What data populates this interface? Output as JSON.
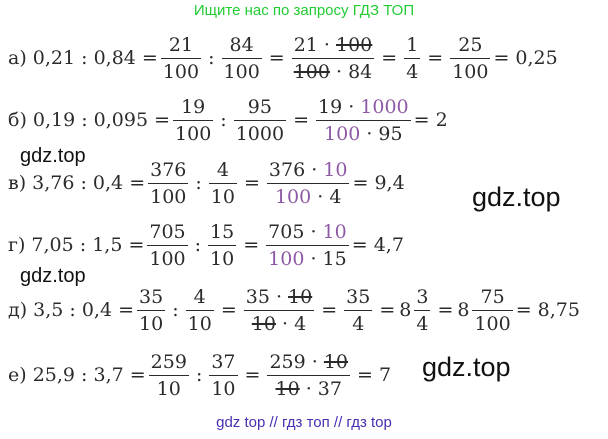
{
  "banner": "Ищите нас по запросу ГДЗ ТОП",
  "watermark": "gdz.top",
  "footer": "gdz top  //  гдз топ  //  гдз top",
  "rows": {
    "a": {
      "lead": "а) 0,21 : 0,84 =",
      "f1": {
        "n": "21",
        "d": "100"
      },
      "f2": {
        "n": "84",
        "d": "100"
      },
      "f3": {
        "n1": "21 · ",
        "n2": "100",
        "d1": "100",
        "d2": " · 84"
      },
      "f4": {
        "n": "1",
        "d": "4"
      },
      "f5": {
        "n": "25",
        "d": "100"
      },
      "tail": "= 0,25"
    },
    "b": {
      "lead": "б) 0,19 : 0,095 =",
      "f1": {
        "n": "19",
        "d": "100"
      },
      "f2": {
        "n": "95",
        "d": "1000"
      },
      "f3": {
        "n1": "19 · ",
        "n2": "1000",
        "d1": "100",
        "d2": " · 95"
      },
      "tail": "= 2"
    },
    "c": {
      "lead": "в) 3,76 : 0,4 =",
      "f1": {
        "n": "376",
        "d": "100"
      },
      "f2": {
        "n": "4",
        "d": "10"
      },
      "f3": {
        "n1": "376 · ",
        "n2": "10",
        "d1": "100",
        "d2": " · 4"
      },
      "tail": "= 9,4"
    },
    "d": {
      "lead": "г) 7,05 : 1,5 =",
      "f1": {
        "n": "705",
        "d": "100"
      },
      "f2": {
        "n": "15",
        "d": "10"
      },
      "f3": {
        "n1": "705 · ",
        "n2": "10",
        "d1": "100",
        "d2": " · 15"
      },
      "tail": "= 4,7"
    },
    "e": {
      "lead": "д) 3,5 : 0,4 =",
      "f1": {
        "n": "35",
        "d": "10"
      },
      "f2": {
        "n": "4",
        "d": "10"
      },
      "f3": {
        "n1": "35 · ",
        "n2": "10",
        "d1": "10",
        "d2": " · 4"
      },
      "f4": {
        "n": "35",
        "d": "4"
      },
      "m1": {
        "w": "8",
        "n": "3",
        "d": "4"
      },
      "m2": {
        "w": "8",
        "n": "75",
        "d": "100"
      },
      "tail": "= 8,75"
    },
    "f": {
      "lead": "е) 25,9 : 3,7 =",
      "f1": {
        "n": "259",
        "d": "10"
      },
      "f2": {
        "n": "37",
        "d": "10"
      },
      "f3": {
        "n1": "259 · ",
        "n2": "10",
        "d1": "10",
        "d2": " · 37"
      },
      "tail": "= 7"
    }
  },
  "symbols": {
    "div": ":",
    "eq": "="
  }
}
